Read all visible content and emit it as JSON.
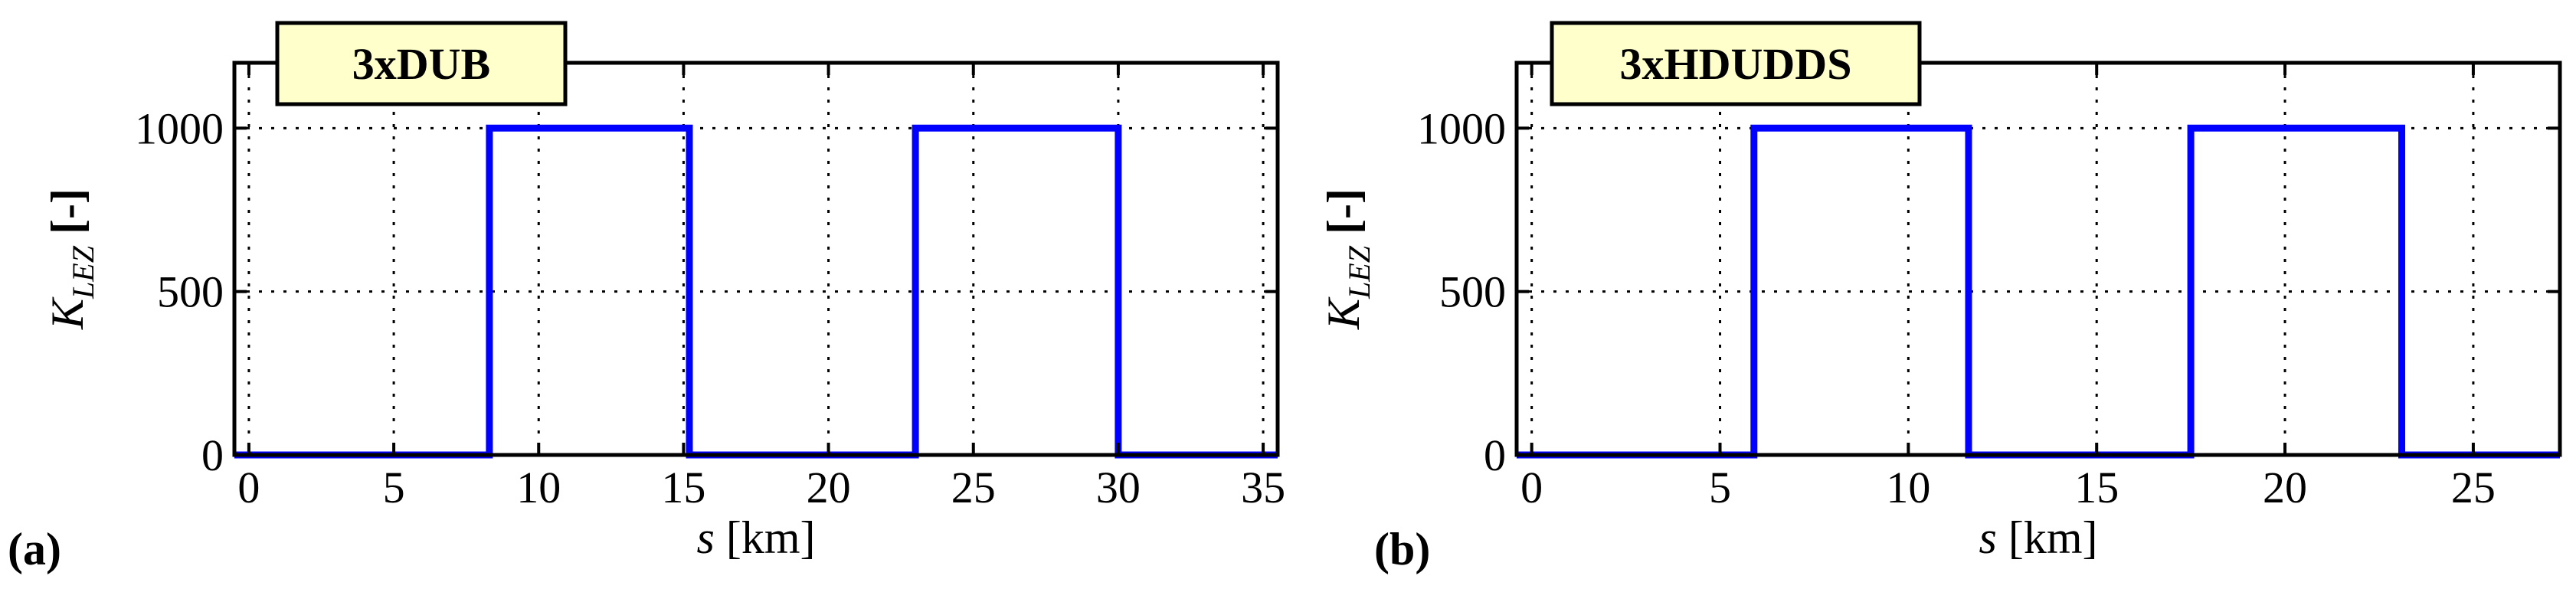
{
  "chart_data": [
    {
      "type": "line",
      "panel_label": "(a)",
      "title": "3xDUB",
      "xlabel": "s [km]",
      "xlabel_italic": "s",
      "xlabel_rest": " [km]",
      "ylabel": "K_LEZ [-]",
      "ylabel_main": "K",
      "ylabel_sub": "LEZ",
      "ylabel_rest": " [-]",
      "xlim": [
        -0.5,
        35.5
      ],
      "ylim": [
        0,
        1200
      ],
      "xticks": [
        0,
        5,
        10,
        15,
        20,
        25,
        30,
        35
      ],
      "yticks": [
        0,
        500,
        1000
      ],
      "grid": true,
      "series": [
        {
          "color": "#0000ff",
          "x": [
            -0.5,
            8.3,
            8.3,
            15.2,
            15.2,
            23.0,
            23.0,
            30.0,
            30.0,
            35.5
          ],
          "y": [
            0,
            0,
            1000,
            1000,
            0,
            0,
            1000,
            1000,
            0,
            0
          ]
        }
      ]
    },
    {
      "type": "line",
      "panel_label": "(b)",
      "title": "3xHDUDDS",
      "xlabel": "s [km]",
      "xlabel_italic": "s",
      "xlabel_rest": " [km]",
      "ylabel": "K_LEZ [-]",
      "ylabel_main": "K",
      "ylabel_sub": "LEZ",
      "ylabel_rest": " [-]",
      "xlim": [
        -0.4,
        27.3
      ],
      "ylim": [
        0,
        1200
      ],
      "xticks": [
        0,
        5,
        10,
        15,
        20,
        25
      ],
      "yticks": [
        0,
        500,
        1000
      ],
      "grid": true,
      "series": [
        {
          "color": "#0000ff",
          "x": [
            -0.4,
            5.9,
            5.9,
            11.6,
            11.6,
            17.5,
            17.5,
            23.1,
            23.1,
            27.3
          ],
          "y": [
            0,
            0,
            1000,
            1000,
            0,
            0,
            1000,
            1000,
            0,
            0
          ]
        }
      ]
    }
  ],
  "colors": {
    "title_box_fill": "#ffffcc",
    "line": "#0000ff",
    "grid": "#000000"
  }
}
